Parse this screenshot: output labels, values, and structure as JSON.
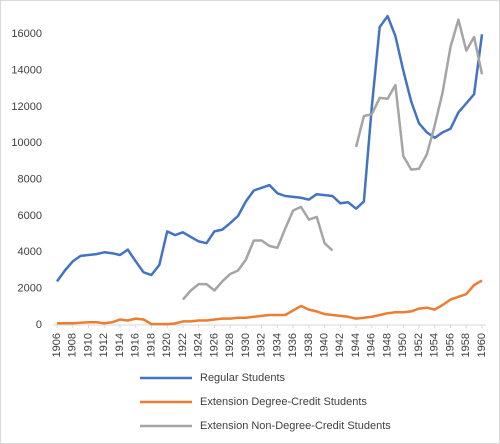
{
  "chart_data": {
    "type": "line",
    "x": [
      1906,
      1907,
      1908,
      1909,
      1910,
      1911,
      1912,
      1913,
      1914,
      1915,
      1916,
      1917,
      1918,
      1919,
      1920,
      1921,
      1922,
      1923,
      1924,
      1925,
      1926,
      1927,
      1928,
      1929,
      1930,
      1931,
      1932,
      1933,
      1934,
      1935,
      1936,
      1937,
      1938,
      1939,
      1940,
      1941,
      1942,
      1943,
      1944,
      1945,
      1946,
      1947,
      1948,
      1949,
      1950,
      1951,
      1952,
      1953,
      1954,
      1955,
      1956,
      1957,
      1958,
      1959,
      1960
    ],
    "xlim": [
      1906,
      1960
    ],
    "xticks": [
      1906,
      1908,
      1910,
      1912,
      1914,
      1916,
      1918,
      1920,
      1922,
      1924,
      1926,
      1928,
      1930,
      1932,
      1934,
      1936,
      1938,
      1940,
      1942,
      1944,
      1946,
      1948,
      1950,
      1952,
      1954,
      1956,
      1958,
      1960
    ],
    "ylim": [
      0,
      17500
    ],
    "yticks": [
      0,
      2000,
      4000,
      6000,
      8000,
      10000,
      12000,
      14000,
      16000
    ],
    "grid": false,
    "legend": "bottom",
    "series": [
      {
        "name": "Regular Students",
        "color": "#4472c4",
        "values": [
          2400,
          3000,
          3500,
          3800,
          3850,
          3900,
          4000,
          3950,
          3850,
          4150,
          3500,
          2900,
          2750,
          3300,
          5150,
          4950,
          5100,
          4850,
          4600,
          4500,
          5150,
          5250,
          5600,
          6000,
          6800,
          7400,
          7550,
          7700,
          7250,
          7100,
          7050,
          7000,
          6900,
          7200,
          7150,
          7100,
          6700,
          6750,
          6400,
          6800,
          12000,
          16400,
          17000,
          15900,
          14000,
          12300,
          11100,
          10600,
          10300,
          10600,
          10800,
          11700,
          12200,
          12700,
          16000
        ]
      },
      {
        "name": "Extension Degree-Credit Students",
        "color": "#ed7d31",
        "values": [
          100,
          100,
          100,
          120,
          150,
          150,
          100,
          150,
          300,
          250,
          350,
          300,
          50,
          50,
          50,
          80,
          200,
          200,
          250,
          250,
          300,
          350,
          350,
          400,
          400,
          450,
          500,
          550,
          550,
          550,
          800,
          1050,
          850,
          750,
          600,
          550,
          500,
          450,
          350,
          400,
          450,
          550,
          650,
          700,
          700,
          750,
          900,
          950,
          850,
          1100,
          1400,
          1550,
          1700,
          2200,
          2450
        ]
      },
      {
        "name": "Extension Non-Degree-Credit Students",
        "color": "#a5a5a5",
        "values": [
          null,
          null,
          null,
          null,
          null,
          null,
          null,
          null,
          null,
          null,
          null,
          null,
          null,
          null,
          null,
          null,
          1400,
          1900,
          2250,
          2250,
          1900,
          2400,
          2800,
          3000,
          3600,
          4650,
          4650,
          4350,
          4250,
          5300,
          6300,
          6500,
          5800,
          5950,
          4500,
          4100,
          null,
          null,
          9800,
          11500,
          11600,
          12500,
          12450,
          13200,
          9300,
          8550,
          8600,
          9400,
          11000,
          12800,
          15300,
          16800,
          15100,
          15850,
          13800
        ]
      }
    ]
  }
}
